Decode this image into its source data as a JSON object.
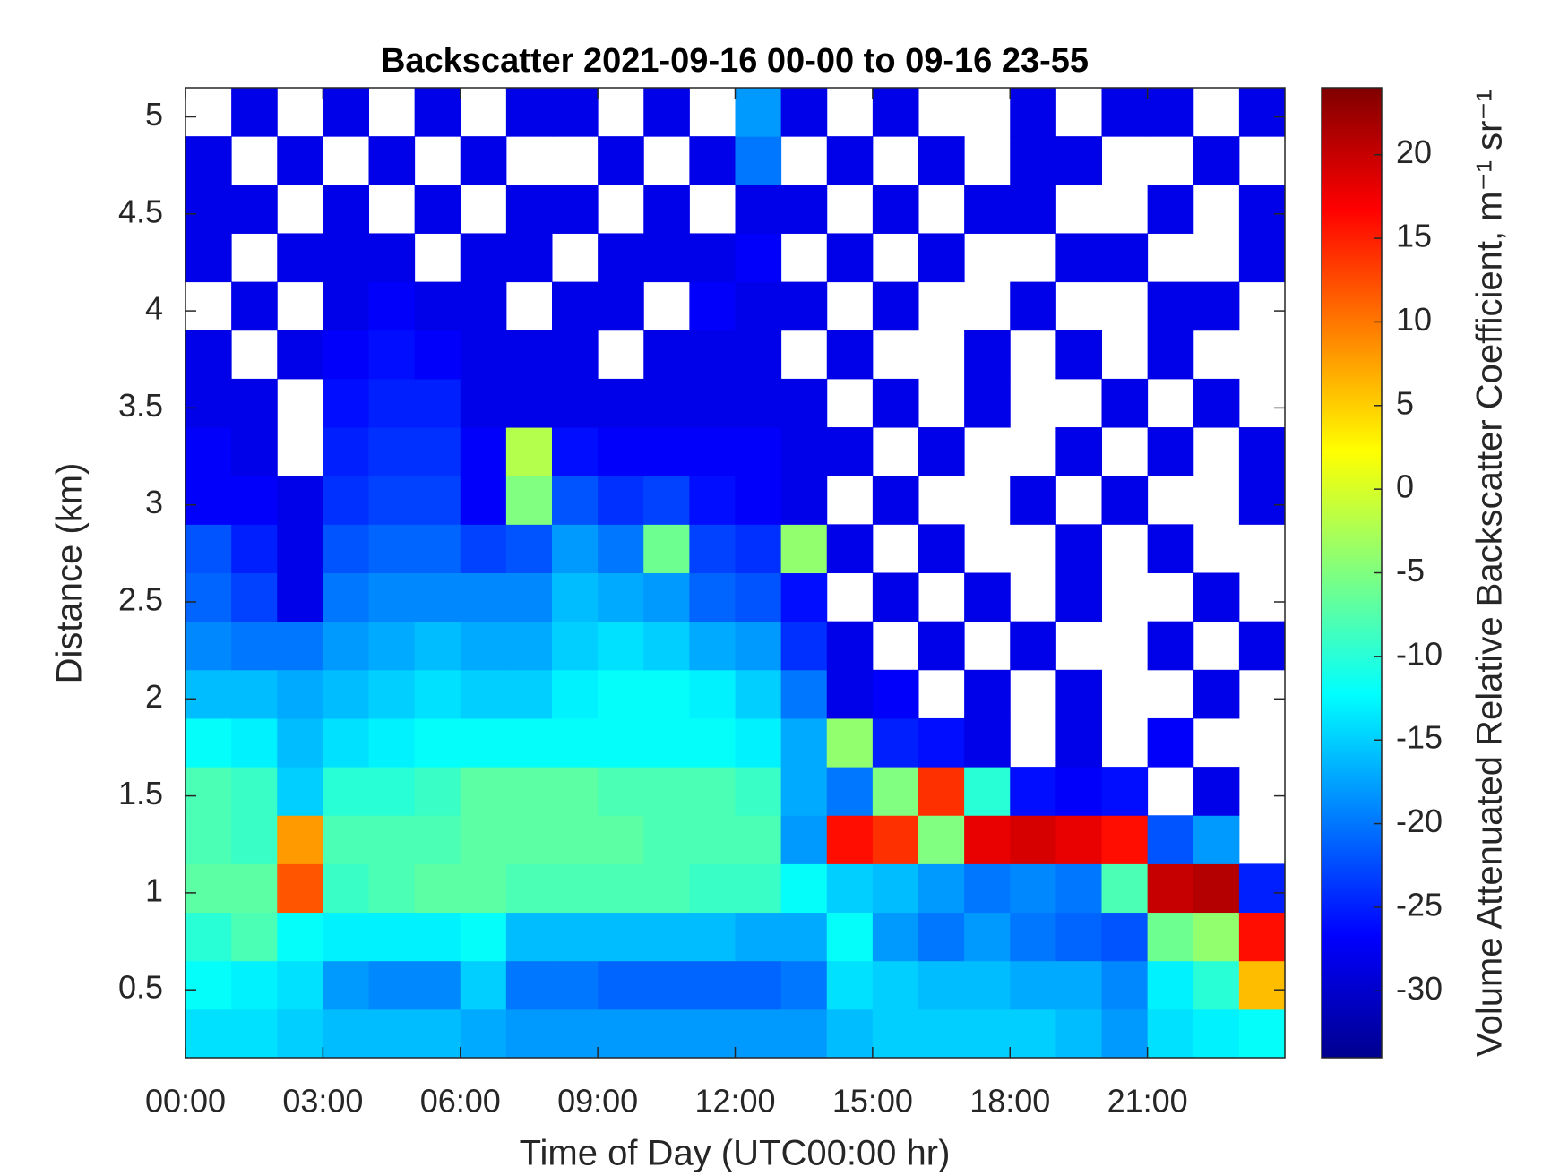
{
  "chart_data": {
    "type": "heatmap",
    "title": "Backscatter 2021-09-16 00-00 to 09-16 23-55",
    "x_label": "Time of Day (UTC00:00 hr)",
    "y_label": "Distance (km)",
    "colorbar_label": "Volume Attenuated Relative Backscatter Coefficient, m⁻¹ sr⁻¹",
    "colormap": "jet",
    "clim": [
      -34,
      24
    ],
    "cticks": [
      -30,
      -25,
      -20,
      -15,
      -10,
      -5,
      0,
      5,
      10,
      15,
      20
    ],
    "xlim": [
      0,
      24
    ],
    "xticks": [
      {
        "value": 0,
        "label": "00:00"
      },
      {
        "value": 3,
        "label": "03:00"
      },
      {
        "value": 6,
        "label": "06:00"
      },
      {
        "value": 9,
        "label": "09:00"
      },
      {
        "value": 12,
        "label": "12:00"
      },
      {
        "value": 15,
        "label": "15:00"
      },
      {
        "value": 18,
        "label": "18:00"
      },
      {
        "value": 21,
        "label": "21:00"
      }
    ],
    "ylim": [
      0.15,
      5.15
    ],
    "yticks": [
      0.5,
      1,
      1.5,
      2,
      2.5,
      3,
      3.5,
      4,
      4.5,
      5
    ],
    "x_bins": [
      0,
      1,
      2,
      3,
      4,
      5,
      6,
      7,
      8,
      9,
      10,
      11,
      12,
      13,
      14,
      15,
      16,
      17,
      18,
      19,
      20,
      21,
      22,
      23,
      24
    ],
    "y_bins": [
      0.15,
      0.4,
      0.65,
      0.9,
      1.15,
      1.4,
      1.65,
      1.9,
      2.15,
      2.4,
      2.65,
      2.9,
      3.15,
      3.4,
      3.65,
      3.9,
      4.15,
      4.4,
      4.65,
      4.9,
      5.15
    ],
    "z": [
      [
        -14,
        -14,
        -15,
        -16,
        -16,
        -16,
        -17,
        -18,
        -18,
        -18,
        -18,
        -18,
        -18,
        -18,
        -16,
        -15,
        -15,
        -15,
        -15,
        -16,
        -18,
        -14,
        -13,
        -12
      ],
      [
        -12,
        -13,
        -14,
        -18,
        -19,
        -19,
        -15,
        -20,
        -20,
        -21,
        -21,
        -21,
        -21,
        -20,
        -14,
        -15,
        -16,
        -16,
        -17,
        -17,
        -19,
        -13,
        -10,
        6
      ],
      [
        -10,
        -8,
        -12,
        -13,
        -13,
        -13,
        -12,
        -16,
        -16,
        -16,
        -16,
        -16,
        -17,
        -17,
        -12,
        -18,
        -20,
        -18,
        -20,
        -21,
        -22,
        -6,
        -4,
        16
      ],
      [
        -7,
        -7,
        12,
        -9,
        -8,
        -7,
        -7,
        -8,
        -8,
        -8,
        -8,
        -9,
        -9,
        -12,
        -15,
        -16,
        -18,
        -20,
        -19,
        -20,
        -8,
        20,
        21,
        -25
      ],
      [
        -8,
        -9,
        8,
        -8,
        -8,
        -8,
        -7,
        -7,
        -7,
        -7,
        -8,
        -8,
        -8,
        -18,
        16,
        14,
        -5,
        18,
        19,
        18,
        16,
        -22,
        -18,
        null
      ],
      [
        -8,
        -9,
        -15,
        -10,
        -10,
        -9,
        -7,
        -7,
        -7,
        -8,
        -8,
        -8,
        -9,
        -17,
        -20,
        -5,
        14,
        -10,
        -26,
        -27,
        -26,
        null,
        -28,
        null
      ],
      [
        -12,
        -13,
        -16,
        -14,
        -13,
        -12,
        -12,
        -12,
        -12,
        -12,
        -12,
        -12,
        -13,
        -17,
        -4,
        -25,
        -26,
        -28,
        null,
        -28,
        null,
        -27,
        null,
        null
      ],
      [
        -16,
        -16,
        -17,
        -16,
        -15,
        -14,
        -15,
        -15,
        -13,
        -12,
        -12,
        -13,
        -15,
        -20,
        -28,
        -27,
        null,
        -28,
        null,
        -28,
        null,
        null,
        -28,
        null
      ],
      [
        -19,
        -20,
        -20,
        -18,
        -17,
        -16,
        -17,
        -17,
        -15,
        -14,
        -15,
        -17,
        -18,
        -24,
        -28,
        null,
        -28,
        null,
        -28,
        null,
        null,
        -28,
        null,
        -28
      ],
      [
        -21,
        -23,
        -28,
        -20,
        -19,
        -19,
        -19,
        -19,
        -16,
        -17,
        -18,
        -21,
        -22,
        -26,
        null,
        -28,
        null,
        -28,
        null,
        -28,
        null,
        null,
        -28,
        null
      ],
      [
        -22,
        -25,
        -28,
        -22,
        -21,
        -21,
        -23,
        -22,
        -18,
        -20,
        -6,
        -23,
        -24,
        -4,
        -28,
        null,
        -28,
        null,
        null,
        -28,
        null,
        -28,
        null,
        null
      ],
      [
        -27,
        -27,
        -28,
        -24,
        -23,
        -23,
        -27,
        -5,
        -22,
        -24,
        -23,
        -26,
        -27,
        -28,
        null,
        -28,
        null,
        null,
        -28,
        null,
        -28,
        null,
        null,
        -28
      ],
      [
        -27,
        -28,
        null,
        -25,
        -24,
        -24,
        -27,
        -2,
        -26,
        -27,
        -27,
        -27,
        -27,
        -28,
        -28,
        null,
        -28,
        null,
        null,
        -28,
        null,
        -28,
        null,
        -28
      ],
      [
        -28,
        -28,
        null,
        -26,
        -25,
        -25,
        -28,
        -28,
        -28,
        -28,
        -28,
        -28,
        -28,
        -28,
        null,
        -28,
        null,
        -28,
        null,
        null,
        -28,
        null,
        -28,
        null
      ],
      [
        -28,
        null,
        -28,
        -27,
        -26,
        -27,
        -28,
        -28,
        -28,
        null,
        -28,
        -28,
        -28,
        null,
        -28,
        null,
        null,
        -28,
        null,
        -28,
        null,
        -28,
        null,
        null
      ],
      [
        null,
        -28,
        null,
        -28,
        -27,
        -28,
        -28,
        null,
        -28,
        -28,
        null,
        -27,
        -28,
        -28,
        null,
        -28,
        null,
        null,
        -28,
        null,
        null,
        -28,
        -28,
        null
      ],
      [
        -28,
        null,
        -28,
        -28,
        -28,
        null,
        -28,
        -28,
        null,
        -28,
        -28,
        -28,
        -27,
        null,
        -28,
        null,
        -28,
        null,
        null,
        -28,
        -28,
        null,
        null,
        -28
      ],
      [
        -28,
        -28,
        null,
        -28,
        null,
        -28,
        null,
        -28,
        -28,
        null,
        -28,
        null,
        -28,
        -28,
        null,
        -28,
        null,
        -28,
        -28,
        null,
        null,
        -28,
        null,
        -28
      ],
      [
        -28,
        null,
        -28,
        null,
        -28,
        null,
        -28,
        null,
        null,
        -28,
        null,
        -28,
        -20,
        null,
        -28,
        null,
        -28,
        null,
        -28,
        -28,
        null,
        null,
        -28,
        null
      ],
      [
        null,
        -28,
        null,
        -28,
        null,
        -28,
        null,
        -28,
        -28,
        null,
        -28,
        null,
        -18,
        -28,
        null,
        -28,
        null,
        null,
        -28,
        null,
        -28,
        -28,
        null,
        -28
      ]
    ]
  }
}
